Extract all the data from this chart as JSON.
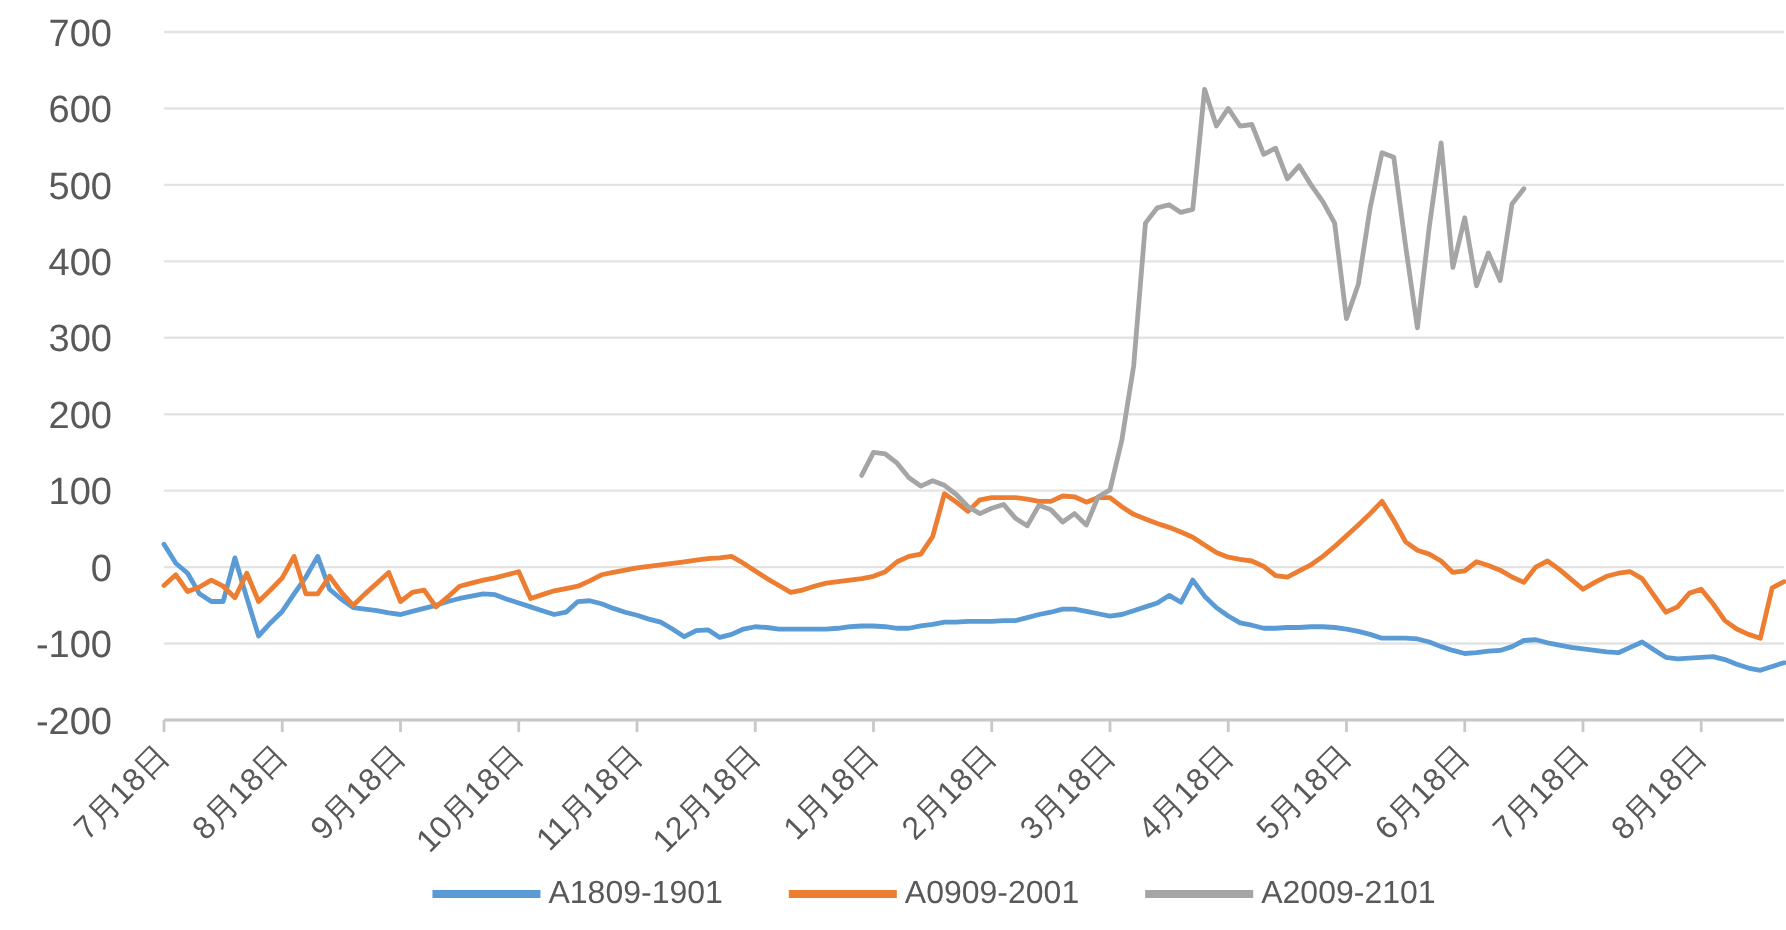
{
  "chart_data": {
    "type": "line",
    "categories": [
      "7月18日",
      null,
      null,
      null,
      null,
      null,
      null,
      null,
      null,
      null,
      "8月18日",
      null,
      null,
      null,
      null,
      null,
      null,
      null,
      null,
      null,
      "9月18日",
      null,
      null,
      null,
      null,
      null,
      null,
      null,
      null,
      null,
      "10月18日",
      null,
      null,
      null,
      null,
      null,
      null,
      null,
      null,
      null,
      "11月18日",
      null,
      null,
      null,
      null,
      null,
      null,
      null,
      null,
      null,
      "12月18日",
      null,
      null,
      null,
      null,
      null,
      null,
      null,
      null,
      null,
      "1月18日",
      null,
      null,
      null,
      null,
      null,
      null,
      null,
      null,
      null,
      "2月18日",
      null,
      null,
      null,
      null,
      null,
      null,
      null,
      null,
      null,
      "3月18日",
      null,
      null,
      null,
      null,
      null,
      null,
      null,
      null,
      null,
      "4月18日",
      null,
      null,
      null,
      null,
      null,
      null,
      null,
      null,
      null,
      "5月18日",
      null,
      null,
      null,
      null,
      null,
      null,
      null,
      null,
      null,
      "6月18日",
      null,
      null,
      null,
      null,
      null,
      null,
      null,
      null,
      null,
      "7月18日",
      null,
      null,
      null,
      null,
      null,
      null,
      null,
      null,
      null,
      "8月18日",
      null,
      null,
      null,
      null,
      null,
      null,
      null
    ],
    "ylim": [
      -200,
      700
    ],
    "yticks": [
      -200,
      -100,
      0,
      100,
      200,
      300,
      400,
      500,
      600,
      700
    ],
    "grid": "y",
    "legend": "bottom",
    "series": [
      {
        "name": "A1809-1901",
        "color": "#5b9bd5",
        "values": [
          30,
          5,
          -8,
          -35,
          -45,
          -45,
          12,
          -40,
          -90,
          -73,
          -58,
          -35,
          -13,
          14,
          -29,
          -42,
          -53,
          -55,
          -57,
          -60,
          -62,
          -58,
          -54,
          -50,
          -45,
          -41,
          -38,
          -35,
          -36,
          -42,
          -47,
          -52,
          -57,
          -62,
          -59,
          -45,
          -44,
          -48,
          -54,
          -59,
          -63,
          -68,
          -72,
          -81,
          -91,
          -83,
          -82,
          -92,
          -88,
          -81,
          -78,
          -79,
          -81,
          -81,
          -81,
          -81,
          -81,
          -80,
          -78,
          -77,
          -77,
          -78,
          -80,
          -80,
          -77,
          -75,
          -72,
          -72,
          -71,
          -71,
          -71,
          -70,
          -70,
          -66,
          -62,
          -59,
          -55,
          -55,
          -58,
          -61,
          -64,
          -62,
          -57,
          -52,
          -47,
          -37,
          -46,
          -17,
          -38,
          -53,
          -64,
          -73,
          -76,
          -80,
          -80,
          -79,
          -79,
          -78,
          -78,
          -79,
          -81,
          -84,
          -88,
          -93,
          -93,
          -93,
          -94,
          -98,
          -104,
          -109,
          -113,
          -112,
          -110,
          -109,
          -104,
          -96,
          -95,
          -99,
          -102,
          -105,
          -107,
          -109,
          -111,
          -112,
          -105,
          -98,
          -108,
          -118,
          -120,
          -119,
          -118,
          -117,
          -121,
          -127,
          -132,
          -135,
          -130,
          -125
        ]
      },
      {
        "name": "A0909-2001",
        "color": "#ed7d31",
        "values": [
          -24,
          -10,
          -32,
          -26,
          -17,
          -25,
          -40,
          -8,
          -45,
          -30,
          -14,
          14,
          -35,
          -35,
          -12,
          -33,
          -50,
          -35,
          -21,
          -7,
          -45,
          -33,
          -30,
          -52,
          -39,
          -25,
          -21,
          -17,
          -14,
          -10,
          -6,
          -41,
          -36,
          -31,
          -28,
          -25,
          -18,
          -10,
          -7,
          -4,
          -1,
          1,
          3,
          5,
          7,
          9,
          11,
          12,
          14,
          5,
          -5,
          -15,
          -24,
          -33,
          -30,
          -25,
          -21,
          -19,
          -17,
          -15,
          -12,
          -6,
          7,
          14,
          17,
          40,
          96,
          85,
          73,
          88,
          91,
          91,
          91,
          89,
          86,
          86,
          93,
          92,
          85,
          91,
          91,
          79,
          69,
          63,
          57,
          52,
          46,
          39,
          29,
          19,
          13,
          10,
          8,
          1,
          -11,
          -13,
          -5,
          3,
          14,
          27,
          41,
          55,
          70,
          86,
          61,
          33,
          22,
          17,
          8,
          -7,
          -5,
          7,
          2,
          -4,
          -13,
          -20,
          0,
          8,
          -3,
          -16,
          -29,
          -20,
          -12,
          -8,
          -6,
          -15,
          -37,
          -59,
          -52,
          -34,
          -29,
          -48,
          -70,
          -81,
          -88,
          -93,
          -27,
          -19
        ]
      },
      {
        "name": "A2009-2101",
        "color": "#a5a5a5",
        "values": [
          null,
          null,
          null,
          null,
          null,
          null,
          null,
          null,
          null,
          null,
          null,
          null,
          null,
          null,
          null,
          null,
          null,
          null,
          null,
          null,
          null,
          null,
          null,
          null,
          null,
          null,
          null,
          null,
          null,
          null,
          null,
          null,
          null,
          null,
          null,
          null,
          null,
          null,
          null,
          null,
          null,
          null,
          null,
          null,
          null,
          null,
          null,
          null,
          null,
          null,
          null,
          null,
          null,
          null,
          null,
          null,
          null,
          null,
          null,
          120,
          150,
          148,
          136,
          117,
          106,
          113,
          107,
          95,
          79,
          70,
          77,
          82,
          64,
          54,
          81,
          75,
          59,
          70,
          55,
          92,
          101,
          166,
          263,
          450,
          470,
          474,
          464,
          468,
          625,
          577,
          600,
          577,
          579,
          540,
          548,
          508,
          525,
          500,
          478,
          450,
          325,
          370,
          470,
          542,
          536,
          420,
          313,
          445,
          555,
          392,
          457,
          368,
          411,
          375,
          475,
          495,
          null,
          null,
          null,
          null,
          null,
          null,
          null,
          null,
          null,
          null,
          null,
          null,
          null,
          null,
          null,
          null,
          null,
          null,
          null,
          null,
          null,
          null
        ]
      }
    ]
  }
}
